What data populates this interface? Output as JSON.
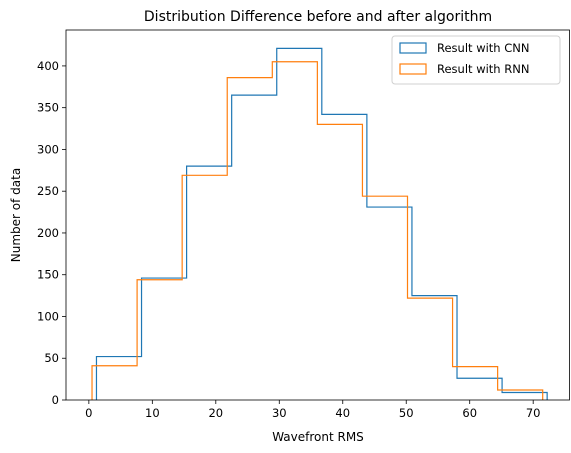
{
  "chart_data": {
    "type": "step-histogram",
    "title": "Distribution Difference before and after algorithm",
    "xlabel": "Wavefront RMS",
    "ylabel": "Number of data",
    "xlim": [
      -3.6,
      75.8
    ],
    "ylim": [
      0,
      443
    ],
    "xticks": [
      0,
      10,
      20,
      30,
      40,
      50,
      60,
      70
    ],
    "yticks": [
      0,
      50,
      100,
      150,
      200,
      250,
      300,
      350,
      400
    ],
    "grid": false,
    "legend_position": "top-right",
    "series": [
      {
        "name": "Result with CNN",
        "color": "#1f77b4",
        "bin_edges": [
          1.2,
          8.3,
          15.4,
          22.5,
          29.6,
          36.7,
          43.8,
          50.9,
          58.0,
          65.1,
          72.2
        ],
        "counts": [
          52,
          146,
          280,
          365,
          421,
          342,
          231,
          125,
          26,
          9
        ]
      },
      {
        "name": "Result with RNN",
        "color": "#ff7f0e",
        "bin_edges": [
          0.5,
          7.6,
          14.7,
          21.8,
          28.9,
          36.0,
          43.1,
          50.2,
          57.3,
          64.4,
          71.5
        ],
        "counts": [
          41,
          144,
          269,
          386,
          405,
          330,
          244,
          122,
          40,
          12
        ]
      }
    ]
  }
}
